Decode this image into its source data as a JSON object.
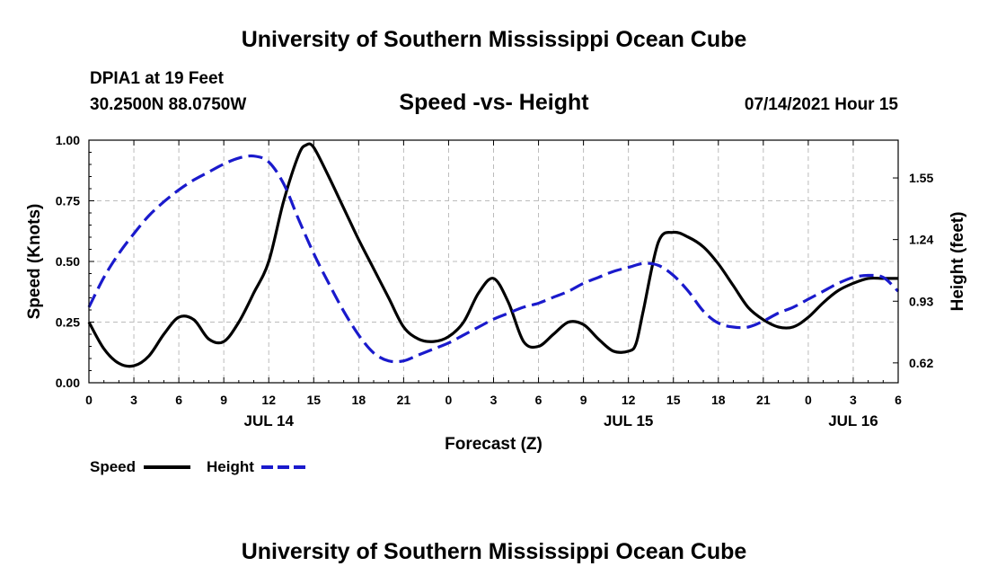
{
  "header": {
    "title": "University of Southern Mississippi Ocean Cube",
    "station": "DPIA1 at 19 Feet",
    "coordinates": "30.2500N  88.0750W",
    "datetime": "07/14/2021 Hour 15"
  },
  "footer": {
    "title": "University of Southern Mississippi Ocean Cube"
  },
  "colors": {
    "speed": "#000000",
    "height": "#1a1acc",
    "grid": "#bbbbbb"
  },
  "chart_data": {
    "type": "line",
    "title": "Speed -vs- Height",
    "xlabel": "Forecast (Z)",
    "ylabel": "Speed (Knots)",
    "y2label": "Height (feet)",
    "xlim": [
      0,
      54
    ],
    "ylim": [
      0,
      1.0
    ],
    "y2lim": [
      0.52,
      1.74
    ],
    "xtick_values": [
      0,
      3,
      6,
      9,
      12,
      15,
      18,
      21,
      24,
      27,
      30,
      33,
      36,
      39,
      42,
      45,
      48,
      51,
      54
    ],
    "xtick_labels": [
      "0",
      "3",
      "6",
      "9",
      "12",
      "15",
      "18",
      "21",
      "0",
      "3",
      "6",
      "9",
      "12",
      "15",
      "18",
      "21",
      "0",
      "3",
      "6"
    ],
    "y_ticks": [
      0.0,
      0.25,
      0.5,
      0.75,
      1.0
    ],
    "y_tick_labels": [
      "0.00",
      "0.25",
      "0.50",
      "0.75",
      "1.00"
    ],
    "y2_ticks": [
      0.62,
      0.93,
      1.24,
      1.55
    ],
    "y2_tick_labels": [
      "0.62",
      "0.93",
      "1.24",
      "1.55"
    ],
    "day_labels": [
      {
        "x": 12,
        "label": "JUL 14"
      },
      {
        "x": 36,
        "label": "JUL 15"
      },
      {
        "x": 51,
        "label": "JUL 16"
      }
    ],
    "legend": {
      "position": "bottom-left",
      "entries": [
        "Speed",
        "Height"
      ]
    },
    "series": [
      {
        "name": "Speed",
        "axis": "left",
        "style": "solid",
        "x": [
          0,
          1,
          2,
          3,
          4,
          5,
          6,
          7,
          8,
          9,
          10,
          11,
          12,
          13,
          14,
          14.5,
          15,
          16,
          17,
          18,
          19,
          20,
          21,
          22,
          23,
          24,
          25,
          26,
          27,
          28,
          29,
          30,
          31,
          32,
          33,
          34,
          35,
          36,
          36.5,
          37,
          38,
          39,
          40,
          41,
          42,
          43,
          44,
          45,
          46,
          47,
          48,
          49,
          50,
          51,
          52,
          53,
          54
        ],
        "values": [
          0.25,
          0.14,
          0.08,
          0.07,
          0.11,
          0.2,
          0.27,
          0.26,
          0.18,
          0.17,
          0.25,
          0.37,
          0.5,
          0.75,
          0.94,
          0.98,
          0.97,
          0.85,
          0.72,
          0.59,
          0.47,
          0.35,
          0.23,
          0.18,
          0.17,
          0.19,
          0.25,
          0.37,
          0.43,
          0.33,
          0.17,
          0.15,
          0.2,
          0.25,
          0.24,
          0.18,
          0.13,
          0.13,
          0.16,
          0.3,
          0.58,
          0.62,
          0.6,
          0.56,
          0.49,
          0.4,
          0.31,
          0.26,
          0.23,
          0.23,
          0.27,
          0.33,
          0.38,
          0.41,
          0.43,
          0.43,
          0.43
        ]
      },
      {
        "name": "Height",
        "axis": "right",
        "style": "dashed",
        "x": [
          0,
          1,
          2,
          3,
          4,
          5,
          6,
          7,
          8,
          9,
          10,
          11,
          12,
          13,
          14,
          15,
          16,
          17,
          18,
          19,
          20,
          21,
          22,
          23,
          24,
          25,
          26,
          27,
          28,
          29,
          30,
          31,
          32,
          33,
          34,
          35,
          36,
          37,
          38,
          39,
          40,
          41,
          42,
          43,
          44,
          45,
          46,
          47,
          48,
          49,
          50,
          51,
          52,
          53,
          54
        ],
        "values": [
          0.9,
          1.05,
          1.17,
          1.27,
          1.36,
          1.43,
          1.49,
          1.54,
          1.58,
          1.62,
          1.65,
          1.66,
          1.63,
          1.52,
          1.34,
          1.17,
          1.02,
          0.88,
          0.76,
          0.67,
          0.63,
          0.63,
          0.66,
          0.69,
          0.72,
          0.76,
          0.8,
          0.84,
          0.87,
          0.9,
          0.92,
          0.95,
          0.98,
          1.02,
          1.05,
          1.08,
          1.1,
          1.12,
          1.11,
          1.06,
          0.98,
          0.88,
          0.82,
          0.8,
          0.8,
          0.83,
          0.87,
          0.9,
          0.94,
          0.98,
          1.02,
          1.05,
          1.06,
          1.05,
          0.98
        ]
      }
    ]
  }
}
